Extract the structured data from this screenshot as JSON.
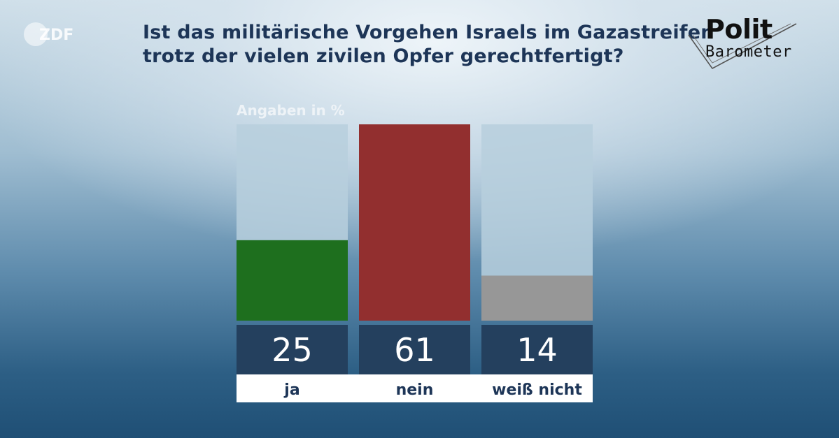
{
  "broadcaster": {
    "logo_text": "ZDF"
  },
  "title_lines": [
    "Ist das militärische Vorgehen Israels im Gazastreifen",
    "trotz der vielen zivilen Opfer gerechtfertigt?"
  ],
  "brand": {
    "line1": "Polit",
    "line2": "Barometer"
  },
  "chart_data": {
    "type": "bar",
    "title": "Ist das militärische Vorgehen Israels im Gazastreifen trotz der vielen zivilen Opfer gerechtfertigt?",
    "unit_label": "Angaben in %",
    "categories": [
      "ja",
      "nein",
      "weiß nicht"
    ],
    "values": [
      25,
      61,
      14
    ],
    "colors": [
      "#1e6f1e",
      "#922f2f",
      "#979797"
    ],
    "ylim": [
      0,
      61
    ],
    "grid": false,
    "value_box_color": "#24405e",
    "track_color": "#b7cfdd"
  }
}
